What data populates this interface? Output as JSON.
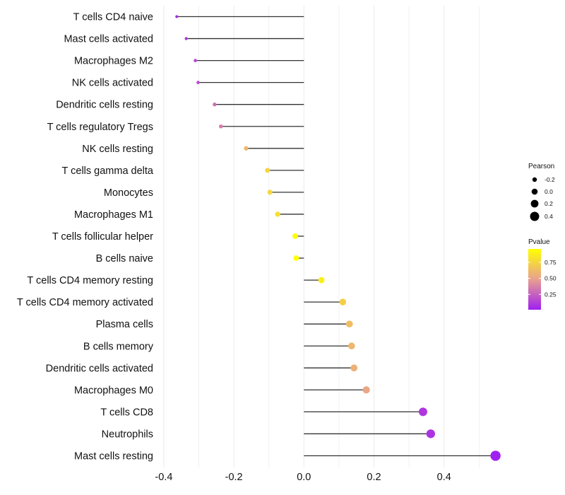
{
  "chart_data": {
    "type": "lollipop",
    "categories": [
      "T cells CD4 naive",
      "Mast cells activated",
      "Macrophages M2",
      "NK cells activated",
      "Dendritic cells resting",
      "T cells regulatory  Tregs",
      "NK cells resting",
      "T cells gamma delta",
      "Monocytes",
      "Macrophages M1",
      "T cells follicular helper",
      "B cells naive",
      "T cells CD4 memory resting",
      "T cells CD4 memory activated",
      "Plasma cells",
      "B cells memory",
      "Dendritic cells activated",
      "Macrophages M0",
      "T cells CD8",
      "Neutrophils",
      "Mast cells resting"
    ],
    "values": [
      -0.363,
      -0.336,
      -0.31,
      -0.302,
      -0.255,
      -0.237,
      -0.165,
      -0.104,
      -0.097,
      -0.075,
      -0.025,
      -0.022,
      0.05,
      0.111,
      0.13,
      0.136,
      0.143,
      0.178,
      0.34,
      0.362,
      0.547
    ],
    "pvalues": [
      0.05,
      0.1,
      0.15,
      0.17,
      0.3,
      0.35,
      0.6,
      0.75,
      0.76,
      0.8,
      0.95,
      0.96,
      0.88,
      0.72,
      0.63,
      0.6,
      0.57,
      0.52,
      0.1,
      0.08,
      0.01
    ],
    "x_axis": {
      "ticks": [
        -0.4,
        -0.2,
        0.0,
        0.2,
        0.4
      ],
      "tick_labels": [
        "-0.4",
        "-0.2",
        "0.0",
        "0.2",
        "0.4"
      ],
      "xlim": [
        -0.42,
        0.58
      ]
    },
    "legends": {
      "size": {
        "title": "Pearson",
        "values": [
          -0.2,
          0.0,
          0.2,
          0.4
        ],
        "labels": [
          "-0.2",
          "0.0",
          "0.2",
          "0.4"
        ]
      },
      "color": {
        "title": "Pvalue",
        "range": [
          0.01,
          0.96
        ],
        "ticks": [
          0.75,
          0.5,
          0.25
        ],
        "labels": [
          "0.75",
          "0.50",
          "0.25"
        ],
        "low_color": "#a020f0",
        "mid_color": "#e8a090",
        "high_color": "#ffff00"
      }
    },
    "grid": true,
    "stem_color": "#333333"
  }
}
